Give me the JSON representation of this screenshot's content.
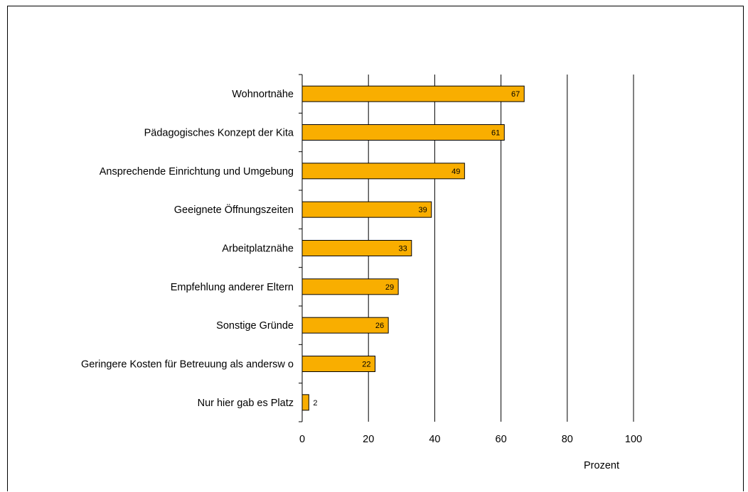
{
  "chart_data": {
    "type": "bar",
    "orientation": "horizontal",
    "categories": [
      "Wohnortnähe",
      "Pädagogisches Konzept der Kita",
      "Ansprechende Einrichtung und Umgebung",
      "Geeignete Öffnungszeiten",
      "Arbeitplatznähe",
      "Empfehlung anderer Eltern",
      "Sonstige Gründe",
      "Geringere Kosten für Betreuung als andersw o",
      "Nur hier gab es Platz"
    ],
    "values": [
      67,
      61,
      49,
      39,
      33,
      29,
      26,
      22,
      2
    ],
    "xlabel": "Prozent",
    "xlim": [
      0,
      100
    ],
    "xticks": [
      "0",
      "20",
      "40",
      "60",
      "80",
      "100"
    ],
    "grid": "vertical",
    "legend": "none",
    "data_labels": true
  },
  "colors": {
    "bar_fill": "#F9AE00",
    "bar_stroke": "#000000",
    "gridline": "#000000",
    "background": "#FFFFFF"
  }
}
